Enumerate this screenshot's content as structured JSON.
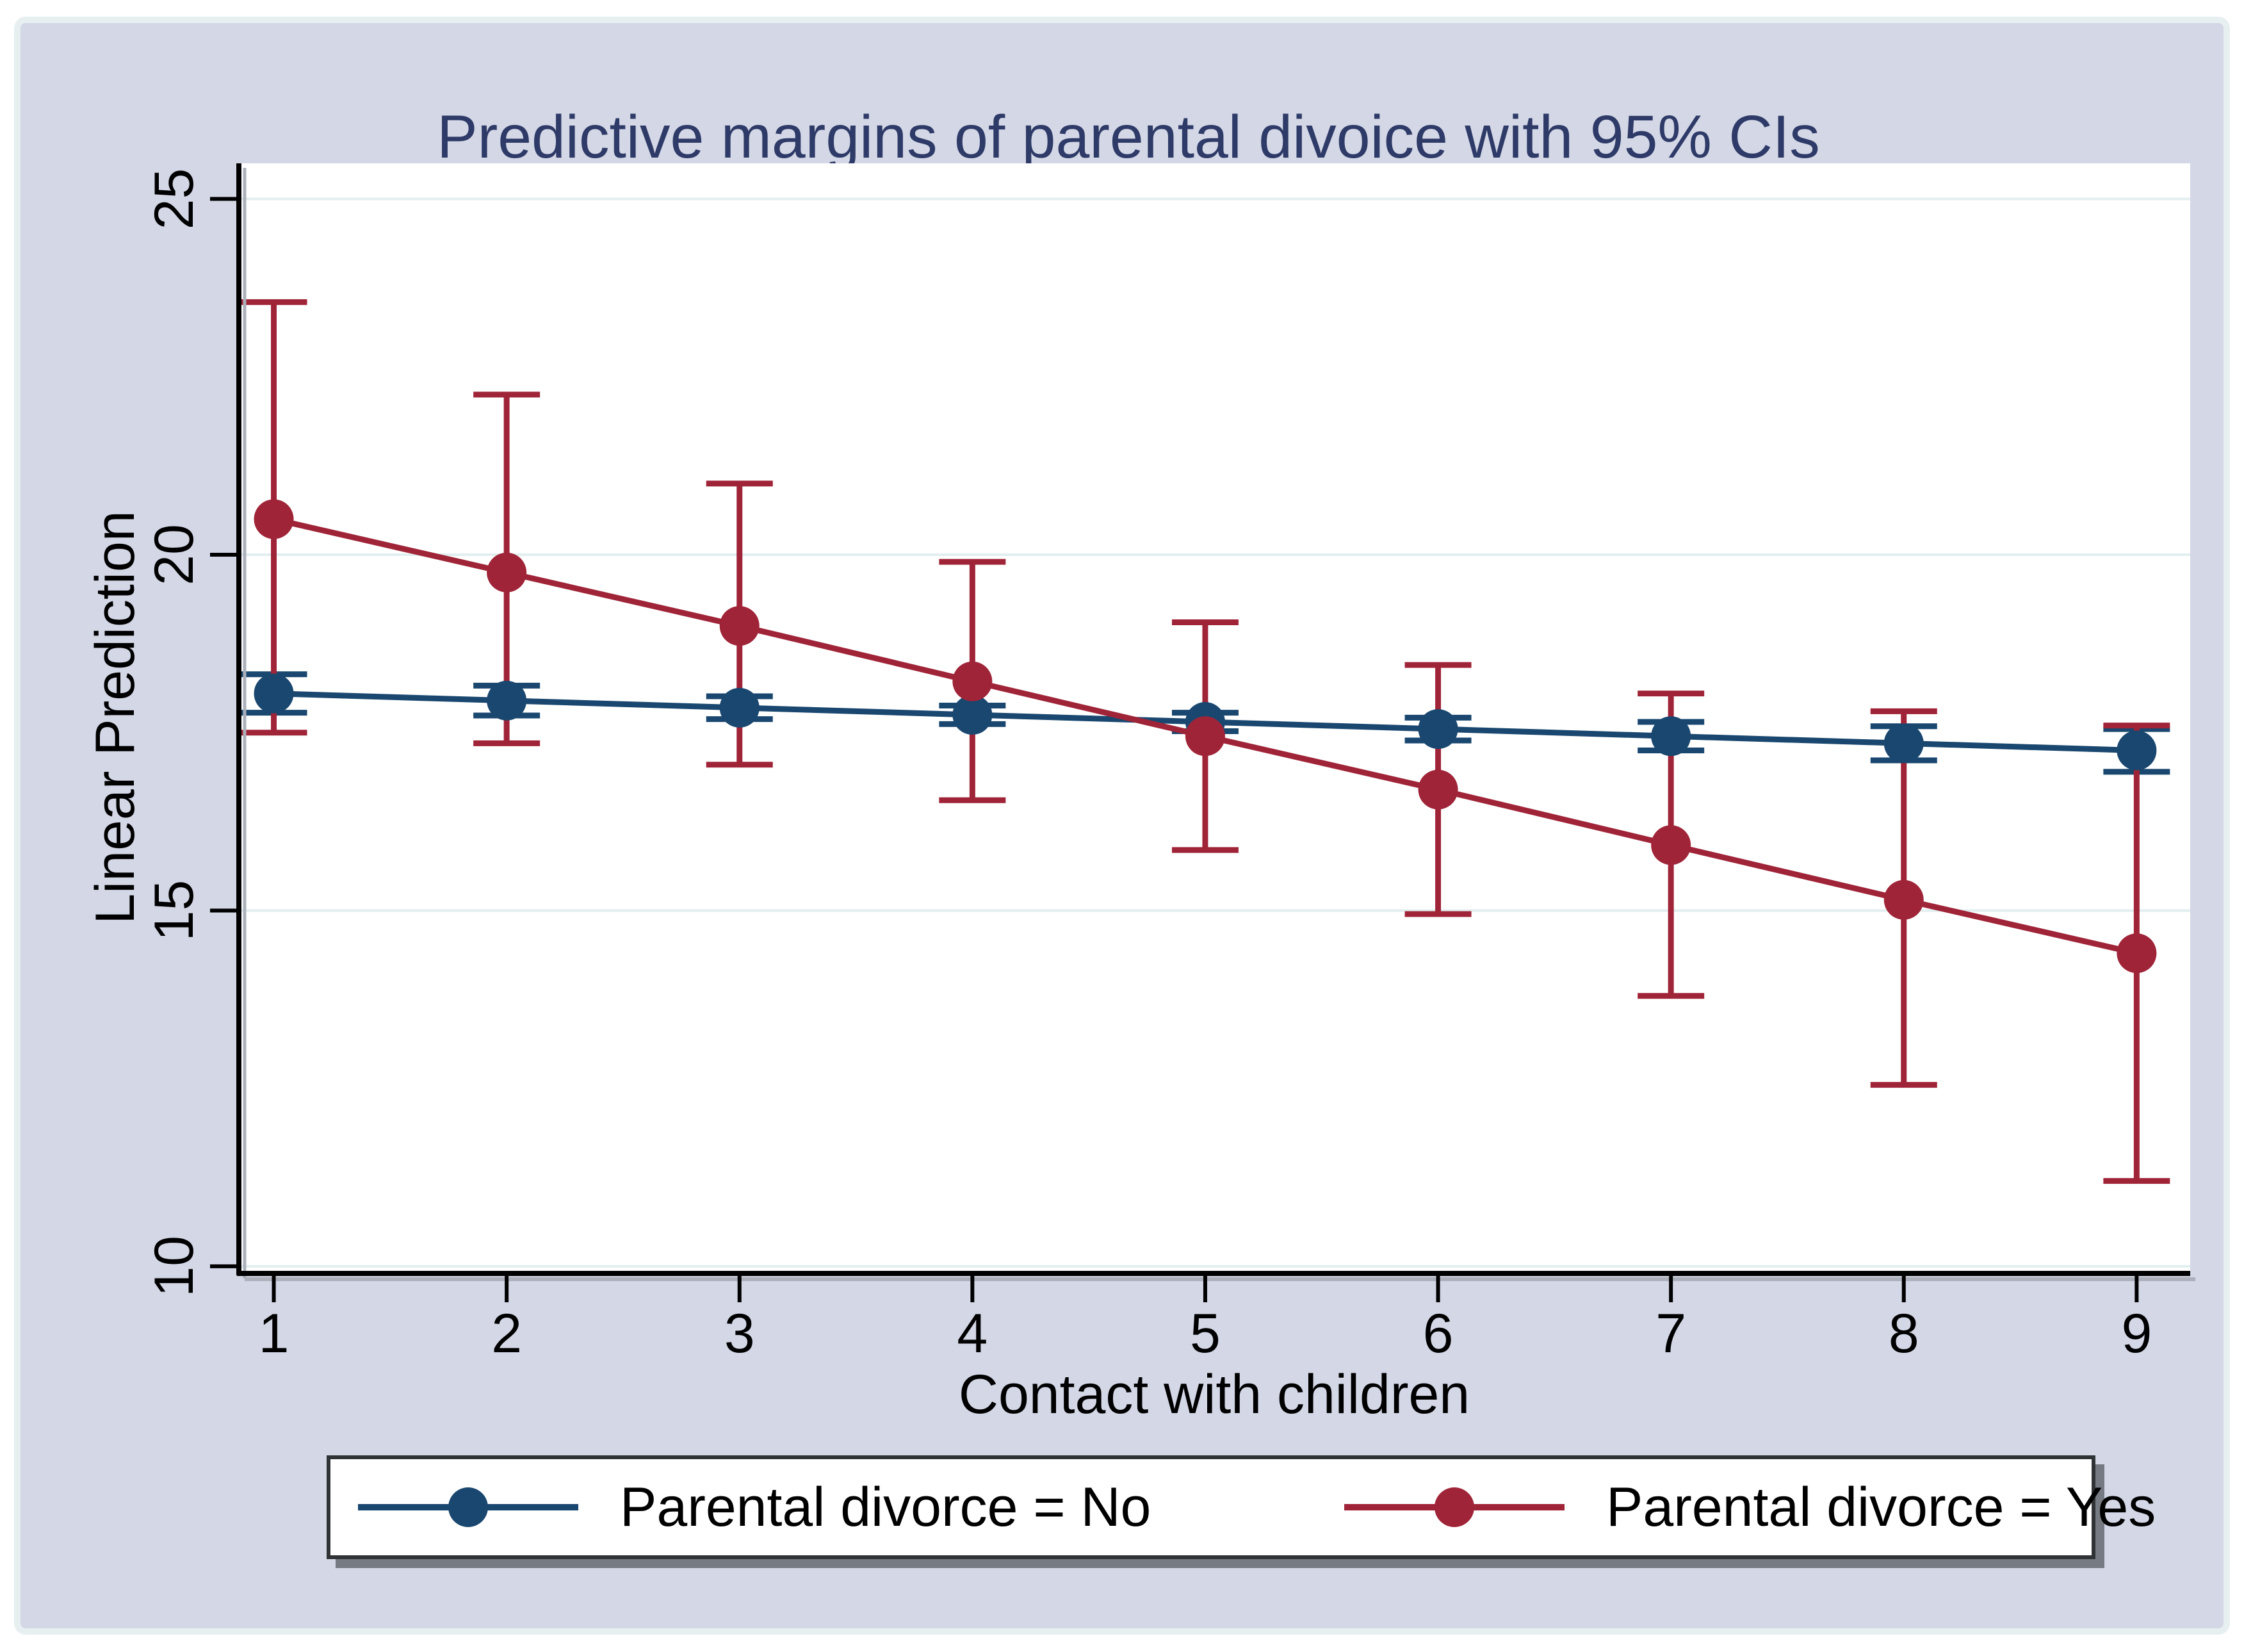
{
  "figure": {
    "background_color": "#D3D7E6",
    "outer_border_color": "#E7EFF1",
    "title_color": "#2E3A67",
    "plot_background_color": "#FFFFFF",
    "axis_color": "#000000",
    "axis_shadow_color": "#ABB0BA",
    "grid_color": "#E2EEEF",
    "legend_border_color": "#303335"
  },
  "chart_data": {
    "type": "line",
    "title": "Predictive margins of parental divoice with 95% CIs",
    "xlabel": "Contact with children",
    "ylabel": "Linear Prediction",
    "x": [
      1,
      2,
      3,
      4,
      5,
      6,
      7,
      8,
      9
    ],
    "xticks": [
      1,
      2,
      3,
      4,
      5,
      6,
      7,
      8,
      9
    ],
    "yticks": [
      10,
      15,
      20,
      25
    ],
    "xlim": [
      0.85,
      9.23
    ],
    "ylim": [
      9.9,
      25.5
    ],
    "grid": true,
    "legend_position": "bottom",
    "error_bars": "95% CI",
    "series": [
      {
        "name": "Parental divorce = No",
        "color": "#1A476F",
        "values": [
          18.05,
          17.95,
          17.85,
          17.75,
          17.65,
          17.55,
          17.45,
          17.35,
          17.25
        ],
        "ci_low": [
          17.78,
          17.74,
          17.69,
          17.62,
          17.52,
          17.39,
          17.25,
          17.11,
          16.95
        ],
        "ci_high": [
          18.32,
          18.16,
          18.01,
          17.88,
          17.78,
          17.71,
          17.65,
          17.59,
          17.55
        ]
      },
      {
        "name": "Parental divorce = Yes",
        "color": "#A02438",
        "values": [
          20.5,
          19.75,
          19.0,
          18.22,
          17.45,
          16.7,
          15.92,
          15.15,
          14.4
        ],
        "ci_low": [
          17.5,
          17.35,
          17.05,
          16.55,
          15.85,
          14.95,
          13.8,
          12.55,
          11.2
        ],
        "ci_high": [
          23.55,
          22.25,
          21.0,
          19.9,
          19.05,
          18.45,
          18.05,
          17.8,
          17.6
        ]
      }
    ]
  }
}
